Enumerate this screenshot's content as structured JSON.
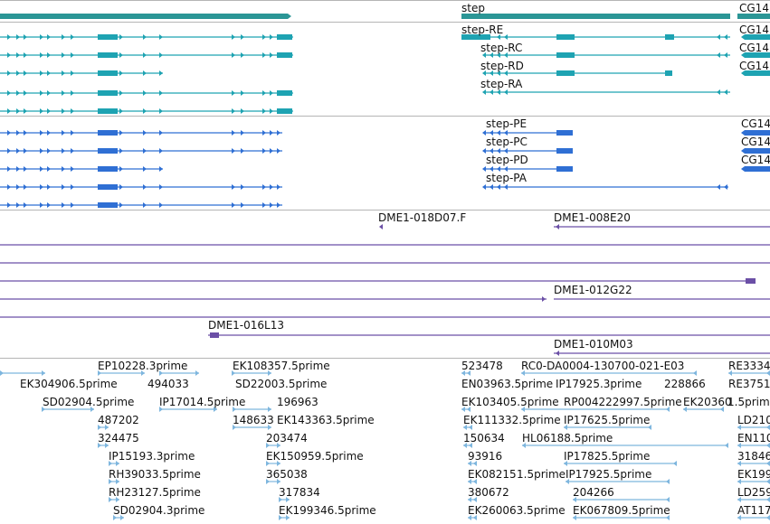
{
  "colors": {
    "gene": "#2b9696",
    "mrna": "#1ea3b2",
    "cds": "#2f6fd4",
    "clone": "#6b4fa6",
    "est": "#7eb6de",
    "separator": "#b5b5b5",
    "text": "#111111"
  },
  "gene_track": {
    "labels": [
      "step",
      "CG14"
    ]
  },
  "mrna_track": {
    "labels": [
      "step-RE",
      "CG14",
      "step-RC",
      "CG14",
      "step-RD",
      "CG14",
      "step-RA"
    ]
  },
  "cds_track": {
    "labels": [
      "step-PE",
      "CG14",
      "step-PC",
      "CG14",
      "step-PD",
      "CG14",
      "step-PA"
    ]
  },
  "clone_track": {
    "labels": [
      "DME1-018D07.F",
      "DME1-008E20",
      "DME1-012G22",
      "DME1-016L13",
      "DME1-010M03"
    ]
  },
  "est_track": {
    "labels": [
      "EP10228.3prime",
      "EK108357.5prime",
      "523478",
      "RC0-DA0004-130700-021-E03",
      "RE3334",
      "EK304906.5prime",
      "494033",
      "SD22003.5prime",
      "EN03963.5prime",
      "IP17925.3prime",
      "228866",
      "RE3751",
      "SD02904.5prime",
      "IP17014.5prime",
      "196963",
      "EK103405.5prime",
      "RP004222997.5prime",
      "EK20360",
      "1.5prim",
      "487202",
      "148633",
      "EK143363.5prime",
      "EK111332.5prime",
      "IP17625.5prime",
      "LD210",
      "324475",
      "203474",
      "150634",
      "HL06188.5prime",
      "EN110",
      "IP15193.3prime",
      "EK150959.5prime",
      "93916",
      "IP17825.5prime",
      "31846",
      "RH39033.5prime",
      "365038",
      "EK08215",
      "1.5prime",
      "IP17925.5prime",
      "EK199",
      "RH23127.5prime",
      "317834",
      "380672",
      "204266",
      "LD259",
      "SD02904.3prime",
      "EK199346.5prime",
      "EK260063.5prime",
      "EK067809.5prime",
      "AT117"
    ]
  }
}
